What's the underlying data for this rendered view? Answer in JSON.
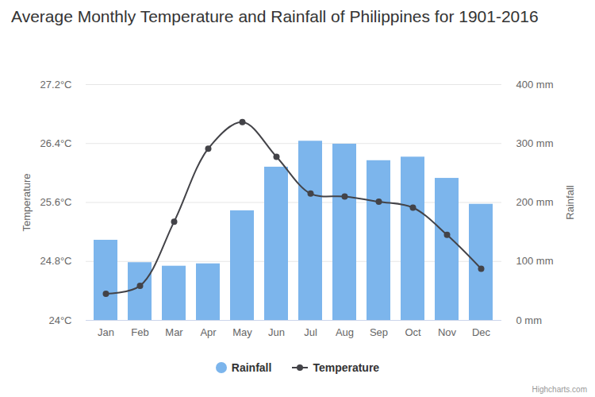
{
  "chart_data": {
    "type": "combo",
    "title": "Average Monthly Temperature and Rainfall of Philippines for 1901-2016",
    "categories": [
      "Jan",
      "Feb",
      "Mar",
      "Apr",
      "May",
      "Jun",
      "Jul",
      "Aug",
      "Sep",
      "Oct",
      "Nov",
      "Dec"
    ],
    "series": [
      {
        "name": "Rainfall",
        "type": "bar",
        "axis": "y2",
        "color": "#7cb5ec",
        "values": [
          136,
          98,
          92,
          96,
          186,
          260,
          304,
          299,
          271,
          277,
          241,
          197
        ]
      },
      {
        "name": "Temperature",
        "type": "line",
        "color": "#434348",
        "marker": "circle",
        "line_style": "solid",
        "values": [
          24.36,
          24.47,
          25.34,
          26.33,
          26.69,
          26.22,
          25.72,
          25.68,
          25.61,
          25.53,
          25.16,
          24.7
        ]
      }
    ],
    "y_label": "Temperature",
    "y2_label": "Rainfall",
    "ylim": [
      24,
      27.2
    ],
    "yticks": [
      {
        "value": 24,
        "label": "24°C"
      },
      {
        "value": 24.8,
        "label": "24.8°C"
      },
      {
        "value": 25.6,
        "label": "25.6°C"
      },
      {
        "value": 26.4,
        "label": "26.4°C"
      },
      {
        "value": 27.2,
        "label": "27.2°C"
      }
    ],
    "y2lim": [
      0,
      400
    ],
    "y2ticks": [
      {
        "value": 0,
        "label": "0 mm"
      },
      {
        "value": 100,
        "label": "100 mm"
      },
      {
        "value": 200,
        "label": "200 mm"
      },
      {
        "value": 300,
        "label": "300 mm"
      },
      {
        "value": 400,
        "label": "400 mm"
      }
    ],
    "grid": true,
    "legend": "bottom",
    "credits": "Highcharts.com"
  }
}
